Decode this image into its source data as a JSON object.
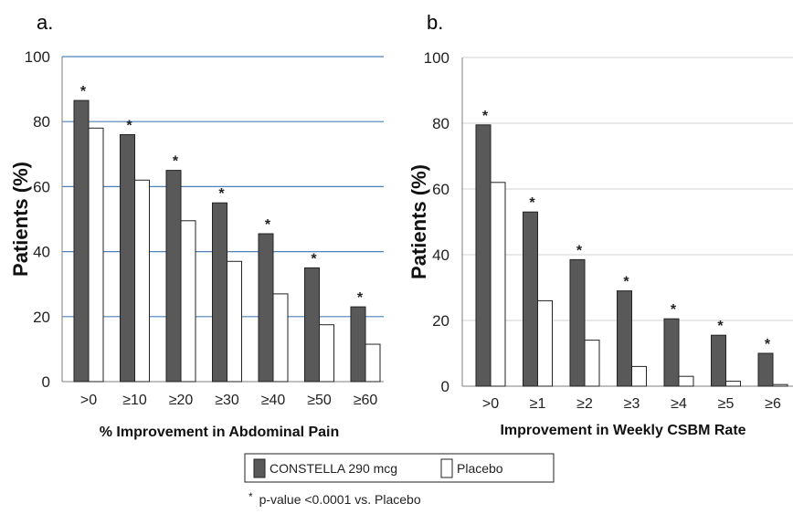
{
  "panels": [
    {
      "label": "a.",
      "grid_color": "#4f81bd"
    },
    {
      "label": "b.",
      "grid_color": "#d9d9d9"
    }
  ],
  "legend": {
    "items": [
      {
        "label": "CONSTELLA 290 mcg",
        "color": "#595959"
      },
      {
        "label": "Placebo",
        "color": "#ffffff"
      }
    ]
  },
  "footnote": {
    "marker": "*",
    "text": "p-value  <0.0001 vs. Placebo"
  },
  "chart_data": [
    {
      "type": "bar",
      "title": "",
      "xlabel": "% Improvement in Abdominal Pain",
      "ylabel": "Patients (%)",
      "ylim": [
        0,
        100
      ],
      "yticks": [
        "0",
        "20",
        "40",
        "60",
        "80",
        "100"
      ],
      "grid": true,
      "categories": [
        ">0",
        "≥10",
        "≥20",
        "≥30",
        "≥40",
        "≥50",
        "≥60"
      ],
      "series": [
        {
          "name": "CONSTELLA 290 mcg",
          "color": "#595959",
          "values": [
            86.5,
            76,
            65,
            55,
            45.5,
            35,
            23
          ]
        },
        {
          "name": "Placebo",
          "color": "#ffffff",
          "values": [
            78,
            62,
            49.5,
            37,
            27,
            17.5,
            11.5
          ]
        }
      ],
      "significance_marker": "*"
    },
    {
      "type": "bar",
      "title": "",
      "xlabel": "Improvement in Weekly CSBM Rate",
      "ylabel": "Patients (%)",
      "ylim": [
        0,
        100
      ],
      "yticks": [
        "0",
        "20",
        "40",
        "60",
        "80",
        "100"
      ],
      "grid": true,
      "categories": [
        ">0",
        "≥1",
        "≥2",
        "≥3",
        "≥4",
        "≥5",
        "≥6"
      ],
      "series": [
        {
          "name": "CONSTELLA 290 mcg",
          "color": "#595959",
          "values": [
            79.5,
            53,
            38.5,
            29,
            20.5,
            15.5,
            10
          ]
        },
        {
          "name": "Placebo",
          "color": "#ffffff",
          "values": [
            62,
            26,
            14,
            6,
            3,
            1.5,
            0.5
          ]
        }
      ],
      "significance_marker": "*"
    }
  ]
}
